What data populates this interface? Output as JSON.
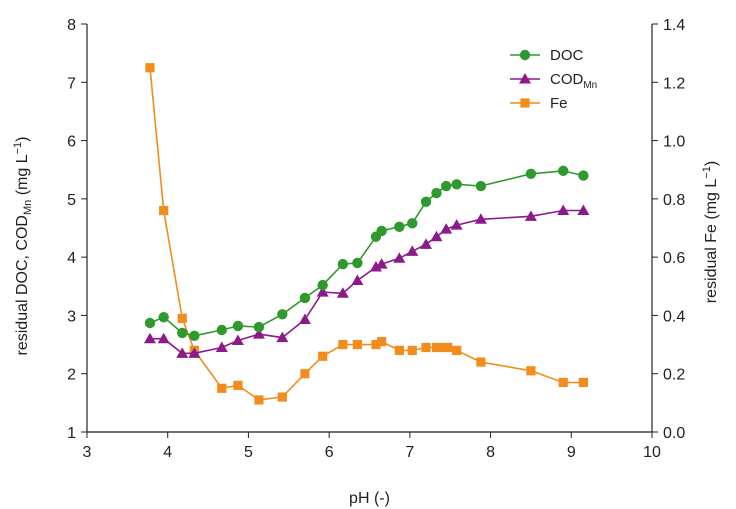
{
  "chart_data": {
    "type": "line",
    "xlabel": "pH (-)",
    "ylabel_left": "residual DOC, COD",
    "ylabel_left_sub": "Mn",
    "ylabel_left_unit": " (mg L",
    "ylabel_left_unit_sup": "−1",
    "ylabel_left_unit_end": ")",
    "ylabel_right": "residual Fe (mg L",
    "ylabel_right_sup": "−1",
    "ylabel_right_end": ")",
    "xlim": [
      3,
      10
    ],
    "ylim_left": [
      1,
      8
    ],
    "ylim_right": [
      0.0,
      1.4
    ],
    "x_ticks": [
      "3",
      "4",
      "5",
      "6",
      "7",
      "8",
      "9",
      "10"
    ],
    "y_left_ticks": [
      "1",
      "2",
      "3",
      "4",
      "5",
      "6",
      "7",
      "8"
    ],
    "y_right_ticks": [
      "0.0",
      "0.2",
      "0.4",
      "0.6",
      "0.8",
      "1.0",
      "1.2",
      "1.4"
    ],
    "grid": false,
    "legend_position": "top-right",
    "series": [
      {
        "name": "DOC",
        "axis": "left",
        "color": "#2e9a2e",
        "marker": "circle",
        "x": [
          3.78,
          3.95,
          4.18,
          4.33,
          4.67,
          4.87,
          5.13,
          5.42,
          5.7,
          5.92,
          6.17,
          6.35,
          6.58,
          6.65,
          6.87,
          7.03,
          7.2,
          7.33,
          7.45,
          7.58,
          7.88,
          8.5,
          8.9,
          9.15
        ],
        "y": [
          2.87,
          2.97,
          2.7,
          2.65,
          2.75,
          2.82,
          2.8,
          3.02,
          3.3,
          3.52,
          3.88,
          3.9,
          4.35,
          4.45,
          4.52,
          4.58,
          4.95,
          5.1,
          5.22,
          5.25,
          5.22,
          5.43,
          5.48,
          5.4
        ]
      },
      {
        "name": "COD",
        "name_sub": "Mn",
        "axis": "left",
        "color": "#8b1a8b",
        "marker": "triangle",
        "x": [
          3.78,
          3.95,
          4.18,
          4.33,
          4.67,
          4.87,
          5.13,
          5.42,
          5.7,
          5.92,
          6.17,
          6.35,
          6.58,
          6.65,
          6.87,
          7.03,
          7.2,
          7.33,
          7.45,
          7.58,
          7.88,
          8.5,
          8.9,
          9.15
        ],
        "y": [
          2.6,
          2.6,
          2.35,
          2.35,
          2.45,
          2.57,
          2.68,
          2.62,
          2.93,
          3.4,
          3.38,
          3.6,
          3.83,
          3.88,
          3.98,
          4.1,
          4.22,
          4.35,
          4.48,
          4.55,
          4.65,
          4.7,
          4.8,
          4.8
        ]
      },
      {
        "name": "Fe",
        "axis": "right",
        "color": "#f28c1c",
        "marker": "square",
        "x": [
          3.78,
          3.95,
          4.18,
          4.33,
          4.67,
          4.87,
          5.13,
          5.42,
          5.7,
          5.92,
          6.17,
          6.35,
          6.58,
          6.65,
          6.87,
          7.03,
          7.2,
          7.33,
          7.4,
          7.47,
          7.58,
          7.88,
          8.5,
          8.9,
          9.15
        ],
        "y": [
          1.25,
          0.76,
          0.39,
          0.28,
          0.15,
          0.16,
          0.11,
          0.12,
          0.2,
          0.26,
          0.3,
          0.3,
          0.3,
          0.31,
          0.28,
          0.28,
          0.29,
          0.29,
          0.29,
          0.29,
          0.28,
          0.24,
          0.21,
          0.17,
          0.17
        ]
      }
    ]
  }
}
